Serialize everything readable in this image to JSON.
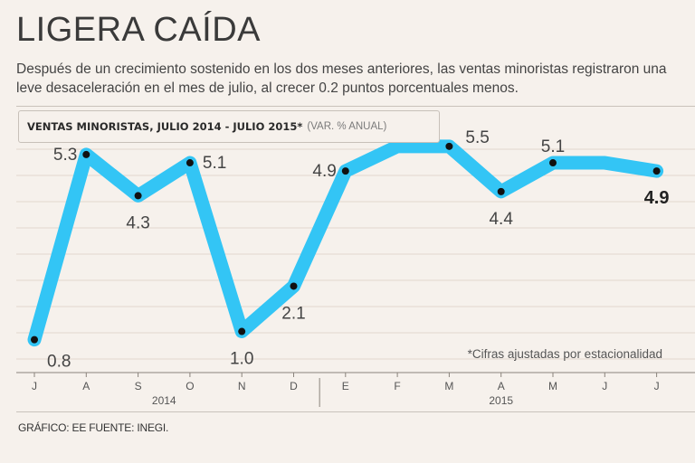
{
  "header": {
    "title": "LIGERA CAÍDA",
    "subtitle": "Después de un crecimiento sostenido en los dos meses anteriores, las ventas minoristas registraron una leve desaceleración en el mes de julio, al crecer 0.2 puntos porcentuales menos."
  },
  "chart_label": {
    "main": "VENTAS MINORISTAS, JULIO 2014 - JULIO 2015*",
    "units": "(VAR. % ANUAL)"
  },
  "footer": {
    "credit": "GRÁFICO: EE  FUENTE: INEGI."
  },
  "colors": {
    "line": "#33c5f5",
    "point": "#111111",
    "background": "#f6f1ec",
    "grid": "#e2d8ce"
  },
  "chart_data": {
    "type": "line",
    "title": "VENTAS MINORISTAS, JULIO 2014 - JULIO 2015*",
    "ylabel": "(VAR. % ANUAL)",
    "categories": [
      "J",
      "A",
      "S",
      "O",
      "N",
      "D",
      "E",
      "F",
      "M",
      "A",
      "M",
      "J",
      "J"
    ],
    "year_labels": [
      "2014",
      "2015"
    ],
    "series": [
      {
        "name": "Ventas minoristas",
        "values": [
          0.8,
          5.3,
          4.3,
          5.1,
          1.0,
          2.1,
          4.9,
          5.5,
          5.5,
          4.4,
          5.1,
          5.1,
          4.9
        ],
        "marked": [
          true,
          true,
          true,
          true,
          true,
          true,
          true,
          false,
          true,
          true,
          true,
          false,
          true
        ]
      }
    ],
    "data_labels": [
      {
        "index": 0,
        "text": "0.8",
        "pos": "below-right"
      },
      {
        "index": 1,
        "text": "5.3",
        "pos": "left"
      },
      {
        "index": 2,
        "text": "4.3",
        "pos": "below"
      },
      {
        "index": 3,
        "text": "5.1",
        "pos": "right"
      },
      {
        "index": 4,
        "text": "1.0",
        "pos": "below"
      },
      {
        "index": 5,
        "text": "2.1",
        "pos": "below"
      },
      {
        "index": 6,
        "text": "4.9",
        "pos": "left"
      },
      {
        "index": 8,
        "text": "5.5",
        "pos": "upper-right"
      },
      {
        "index": 9,
        "text": "4.4",
        "pos": "below"
      },
      {
        "index": 10,
        "text": "5.1",
        "pos": "above"
      },
      {
        "index": 12,
        "text": "4.9",
        "pos": "below",
        "bold": true
      }
    ],
    "annotation": "*Cifras ajustadas por estacionalidad",
    "ylim": [
      0,
      6.2
    ],
    "grid": true
  }
}
